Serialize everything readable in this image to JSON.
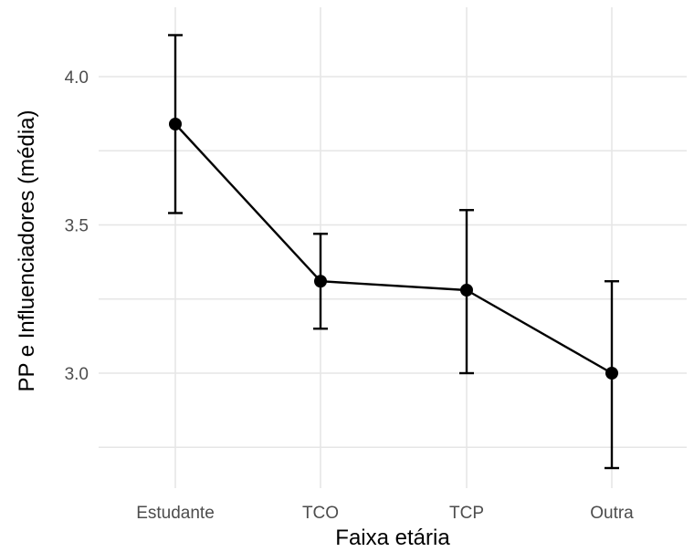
{
  "chart_data": {
    "type": "line",
    "title": "",
    "xlabel": "Faixa etária",
    "ylabel": "PP e Influenciadores (média)",
    "categories": [
      "Estudante",
      "TCO",
      "TCP",
      "Outra"
    ],
    "series": [
      {
        "values": [
          3.84,
          3.31,
          3.28,
          3.0
        ],
        "error_lower": [
          3.54,
          3.15,
          3.0,
          2.68
        ],
        "error_upper": [
          4.14,
          3.47,
          3.55,
          3.31
        ],
        "color": "#000000"
      }
    ],
    "ylim": [
      2.6,
      4.22
    ],
    "yticks": [
      3.0,
      3.5,
      4.0
    ],
    "ytick_labels": [
      "3.0",
      "3.5",
      "4.0"
    ],
    "minor_gridlines": [
      2.75,
      3.25,
      3.75
    ],
    "grid": true,
    "error_bars": true
  }
}
